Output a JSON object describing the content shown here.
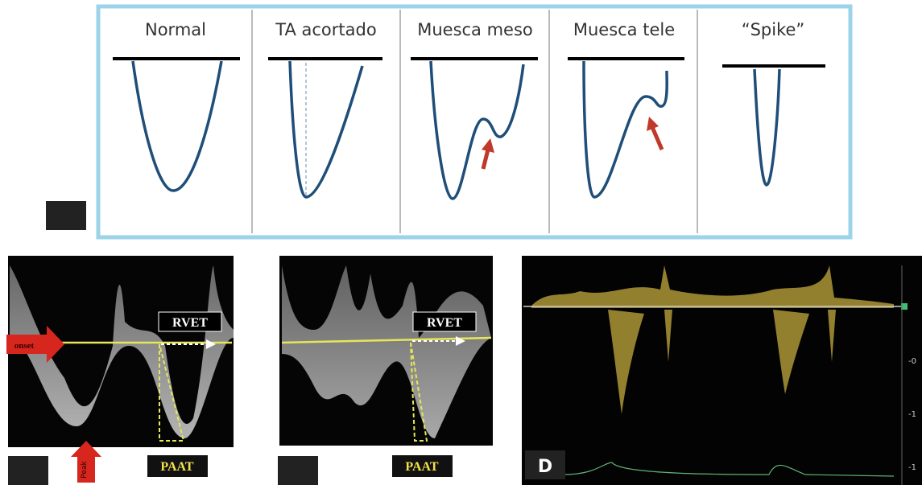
{
  "top_panel": {
    "labels": [
      "Normal",
      "TA acortado",
      "Muesca meso",
      "Muesca tele",
      "“Spike”"
    ]
  },
  "panel_b": {
    "onset": "onset",
    "peak": "Peak",
    "rvet": "RVET",
    "paat": "PAAT"
  },
  "panel_c": {
    "rvet": "RVET",
    "paat": "PAAT"
  },
  "panel_d": {
    "letter": "D",
    "scale": [
      "-0",
      "-1",
      "-1"
    ]
  }
}
